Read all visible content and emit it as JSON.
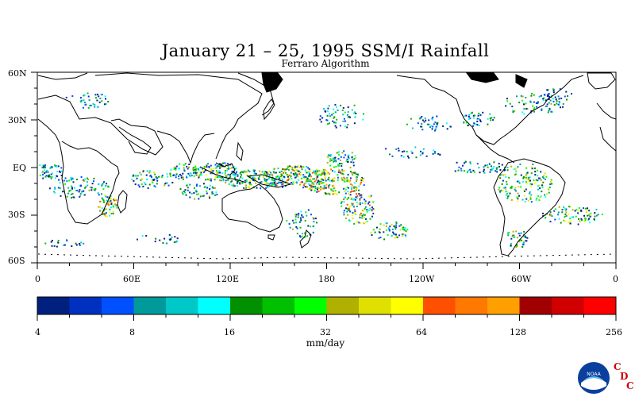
{
  "title": "January 21 – 25, 1995 SSM/I Rainfall",
  "subtitle": "Ferraro Algorithm",
  "lat_labels": [
    "60N",
    "30N",
    "EQ",
    "30S",
    "60S"
  ],
  "lon_labels": [
    "0",
    "60E",
    "120E",
    "180",
    "120W",
    "60W",
    "0"
  ],
  "colorbar": {
    "colors": [
      "#00207f",
      "#0030bf",
      "#0050ff",
      "#009a9a",
      "#00c8c8",
      "#00ffff",
      "#009000",
      "#00c000",
      "#00ff00",
      "#b0b000",
      "#e0e000",
      "#ffff00",
      "#ff5000",
      "#ff7800",
      "#ffa000",
      "#a00000",
      "#d00000",
      "#ff0000"
    ],
    "tick_labels": [
      "4",
      "8",
      "16",
      "32",
      "64",
      "128",
      "256"
    ],
    "unit": "mm/day"
  },
  "logo": {
    "name": "NOAA",
    "text_c1": "C",
    "text_d": "D",
    "text_c2": "C",
    "accent": "#cc0000"
  }
}
